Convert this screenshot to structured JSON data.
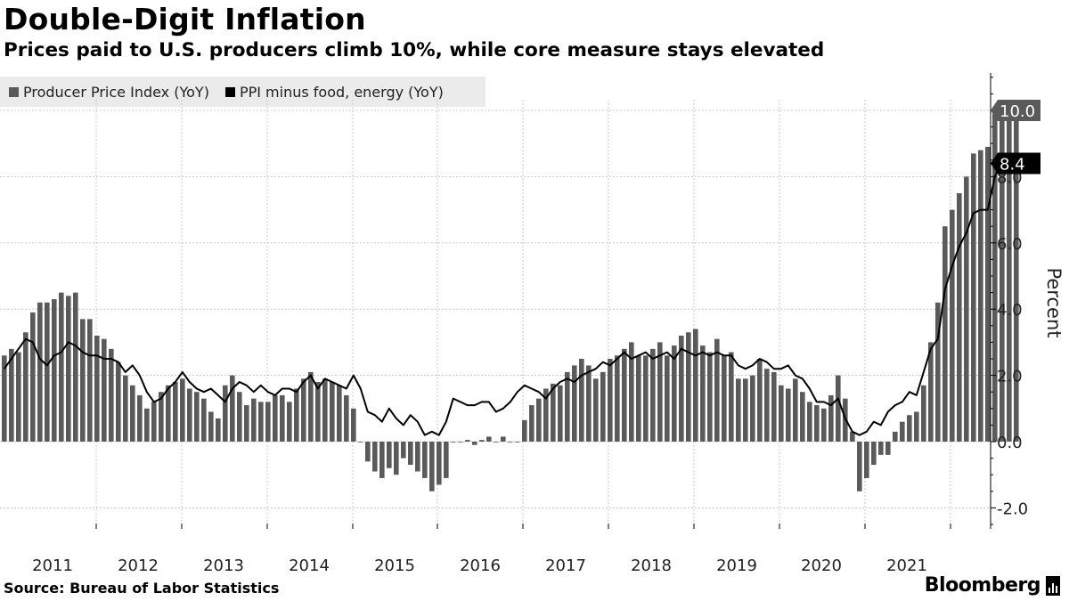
{
  "header": {
    "title": "Double-Digit Inflation",
    "subtitle": "Prices paid to U.S. producers climb 10%, while core measure stays elevated"
  },
  "footer": {
    "source": "Source: Bureau of Labor Statistics",
    "brand": "Bloomberg"
  },
  "colors": {
    "bars": "#5a5a5a",
    "line": "#000000",
    "grid": "#c8c8c8",
    "legend_bg": "#ebebeb",
    "callout_bars": "#5a5a5a",
    "callout_line": "#000000"
  },
  "chart_data": {
    "type": "bar",
    "ylabel": "Percent",
    "ylim": [
      -2.6,
      11.2
    ],
    "yticks": [
      -2.0,
      0.0,
      2.0,
      4.0,
      6.0,
      8.0,
      10.0
    ],
    "ytick_labels": [
      "-2.0",
      "0.0",
      "2.0",
      "4.0",
      "6.0",
      "8.0",
      "10.0"
    ],
    "year_labels": [
      "2011",
      "2012",
      "2013",
      "2014",
      "2015",
      "2016",
      "2017",
      "2018",
      "2019",
      "2020",
      "2021"
    ],
    "start": "2010-11",
    "grid": true,
    "legend_placement": "top-left",
    "series": [
      {
        "name": "Producer Price Index (YoY)",
        "kind": "bar",
        "callout": "10.0",
        "values": [
          2.6,
          2.8,
          2.7,
          3.3,
          3.9,
          4.2,
          4.2,
          4.3,
          4.5,
          4.4,
          4.5,
          3.7,
          3.7,
          3.2,
          3.1,
          2.8,
          2.4,
          2.0,
          1.7,
          1.4,
          1.0,
          1.2,
          1.5,
          1.7,
          1.8,
          1.9,
          1.6,
          1.5,
          1.3,
          0.9,
          0.7,
          1.7,
          2.0,
          1.5,
          1.1,
          1.3,
          1.2,
          1.2,
          1.4,
          1.4,
          1.2,
          1.6,
          1.9,
          2.1,
          1.8,
          1.9,
          1.8,
          1.7,
          1.4,
          1.0,
          0.0,
          -0.6,
          -0.9,
          -1.1,
          -0.8,
          -1.0,
          -0.5,
          -0.7,
          -0.9,
          -1.1,
          -1.5,
          -1.3,
          -1.1,
          0.0,
          0.0,
          0.05,
          -0.1,
          0.05,
          0.15,
          0.0,
          0.15,
          0.0,
          0.0,
          0.65,
          1.1,
          1.3,
          1.6,
          1.75,
          1.7,
          2.1,
          2.3,
          2.5,
          2.3,
          1.9,
          2.1,
          2.5,
          2.6,
          2.8,
          3.0,
          2.6,
          2.6,
          2.8,
          3.0,
          2.6,
          2.9,
          3.2,
          3.3,
          3.4,
          2.9,
          2.7,
          3.1,
          2.6,
          2.7,
          1.9,
          1.9,
          2.0,
          2.5,
          2.2,
          2.1,
          1.7,
          1.6,
          1.9,
          1.5,
          1.2,
          1.1,
          1.0,
          1.4,
          2.0,
          1.3,
          0.3,
          -1.5,
          -1.1,
          -0.7,
          -0.4,
          -0.4,
          0.3,
          0.6,
          0.8,
          0.9,
          1.7,
          3.0,
          4.2,
          6.5,
          7.0,
          7.5,
          8.0,
          8.7,
          8.8,
          8.9,
          9.9,
          9.8,
          9.9,
          10.0
        ]
      },
      {
        "name": "PPI minus food, energy (YoY)",
        "kind": "line",
        "callout": "8.4",
        "values": [
          2.2,
          2.5,
          2.8,
          3.1,
          3.0,
          2.5,
          2.3,
          2.6,
          2.7,
          3.0,
          2.9,
          2.7,
          2.6,
          2.6,
          2.5,
          2.5,
          2.4,
          2.1,
          2.3,
          2.0,
          1.5,
          1.2,
          1.3,
          1.6,
          1.8,
          2.1,
          1.8,
          1.6,
          1.5,
          1.6,
          1.4,
          1.2,
          1.6,
          1.8,
          1.7,
          1.5,
          1.7,
          1.5,
          1.4,
          1.6,
          1.6,
          1.5,
          1.8,
          2.0,
          1.6,
          1.9,
          1.8,
          1.7,
          1.6,
          2.0,
          1.6,
          0.9,
          0.8,
          0.6,
          1.0,
          0.7,
          0.5,
          0.8,
          0.6,
          0.2,
          0.3,
          0.2,
          0.6,
          1.3,
          1.2,
          1.1,
          1.1,
          1.2,
          1.2,
          0.9,
          1.0,
          1.2,
          1.5,
          1.7,
          1.6,
          1.5,
          1.3,
          1.6,
          1.8,
          1.9,
          1.8,
          2.0,
          2.1,
          2.2,
          2.4,
          2.3,
          2.5,
          2.7,
          2.5,
          2.6,
          2.7,
          2.5,
          2.6,
          2.7,
          2.5,
          2.8,
          2.7,
          2.6,
          2.7,
          2.6,
          2.7,
          2.6,
          2.6,
          2.3,
          2.2,
          2.3,
          2.5,
          2.4,
          2.2,
          2.2,
          2.3,
          2.0,
          1.9,
          1.6,
          1.2,
          1.2,
          1.1,
          1.3,
          0.7,
          0.3,
          0.2,
          0.3,
          0.6,
          0.5,
          0.9,
          1.1,
          1.2,
          1.5,
          1.4,
          2.1,
          2.8,
          3.1,
          4.6,
          5.3,
          5.9,
          6.3,
          6.9,
          7.0,
          7.0,
          8.0,
          8.5,
          8.6,
          8.4
        ]
      }
    ]
  }
}
